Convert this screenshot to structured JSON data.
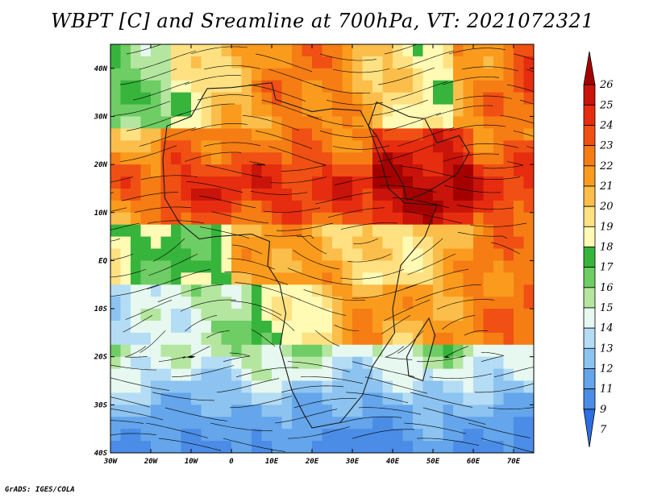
{
  "title": "WBPT [C] and Sreamline at 700hPa, VT: 2021072321",
  "credit": "GrADS: IGES/COLA",
  "map": {
    "lat_range": [
      -40,
      45
    ],
    "lon_range": [
      -30,
      75
    ],
    "lat_ticks": [
      {
        "value": 40,
        "label": "40N"
      },
      {
        "value": 30,
        "label": "30N"
      },
      {
        "value": 20,
        "label": "20N"
      },
      {
        "value": 10,
        "label": "10N"
      },
      {
        "value": 0,
        "label": "EQ"
      },
      {
        "value": -10,
        "label": "10S"
      },
      {
        "value": -20,
        "label": "20S"
      },
      {
        "value": -30,
        "label": "30S"
      },
      {
        "value": -40,
        "label": "40S"
      }
    ],
    "lon_ticks": [
      {
        "value": -30,
        "label": "30W"
      },
      {
        "value": -20,
        "label": "20W"
      },
      {
        "value": -10,
        "label": "10W"
      },
      {
        "value": 0,
        "label": "0"
      },
      {
        "value": 10,
        "label": "10E"
      },
      {
        "value": 20,
        "label": "20E"
      },
      {
        "value": 30,
        "label": "30E"
      },
      {
        "value": 40,
        "label": "40E"
      },
      {
        "value": 50,
        "label": "50E"
      },
      {
        "value": 60,
        "label": "60E"
      },
      {
        "value": 70,
        "label": "70E"
      }
    ]
  },
  "colorbar": {
    "levels": [
      {
        "label": "26",
        "color": "#a50000"
      },
      {
        "label": "25",
        "color": "#c8140a"
      },
      {
        "label": "24",
        "color": "#e62d0f"
      },
      {
        "label": "23",
        "color": "#f05014"
      },
      {
        "label": "22",
        "color": "#f57d14"
      },
      {
        "label": "21",
        "color": "#fa9b1e"
      },
      {
        "label": "20",
        "color": "#fbbe4b"
      },
      {
        "label": "19",
        "color": "#ffe182"
      },
      {
        "label": "18",
        "color": "#fffab4"
      },
      {
        "label": "17",
        "color": "#37b43c"
      },
      {
        "label": "16",
        "color": "#6ecd64"
      },
      {
        "label": "15",
        "color": "#b4e6a0"
      },
      {
        "label": "14",
        "color": "#e6f8f0"
      },
      {
        "label": "13",
        "color": "#b4dcf5"
      },
      {
        "label": "12",
        "color": "#8cc3f0"
      },
      {
        "label": "11",
        "color": "#64a5eb"
      },
      {
        "label": "9",
        "color": "#4b8ce6"
      },
      {
        "label": "7",
        "color": "#2d6ee1"
      }
    ]
  }
}
